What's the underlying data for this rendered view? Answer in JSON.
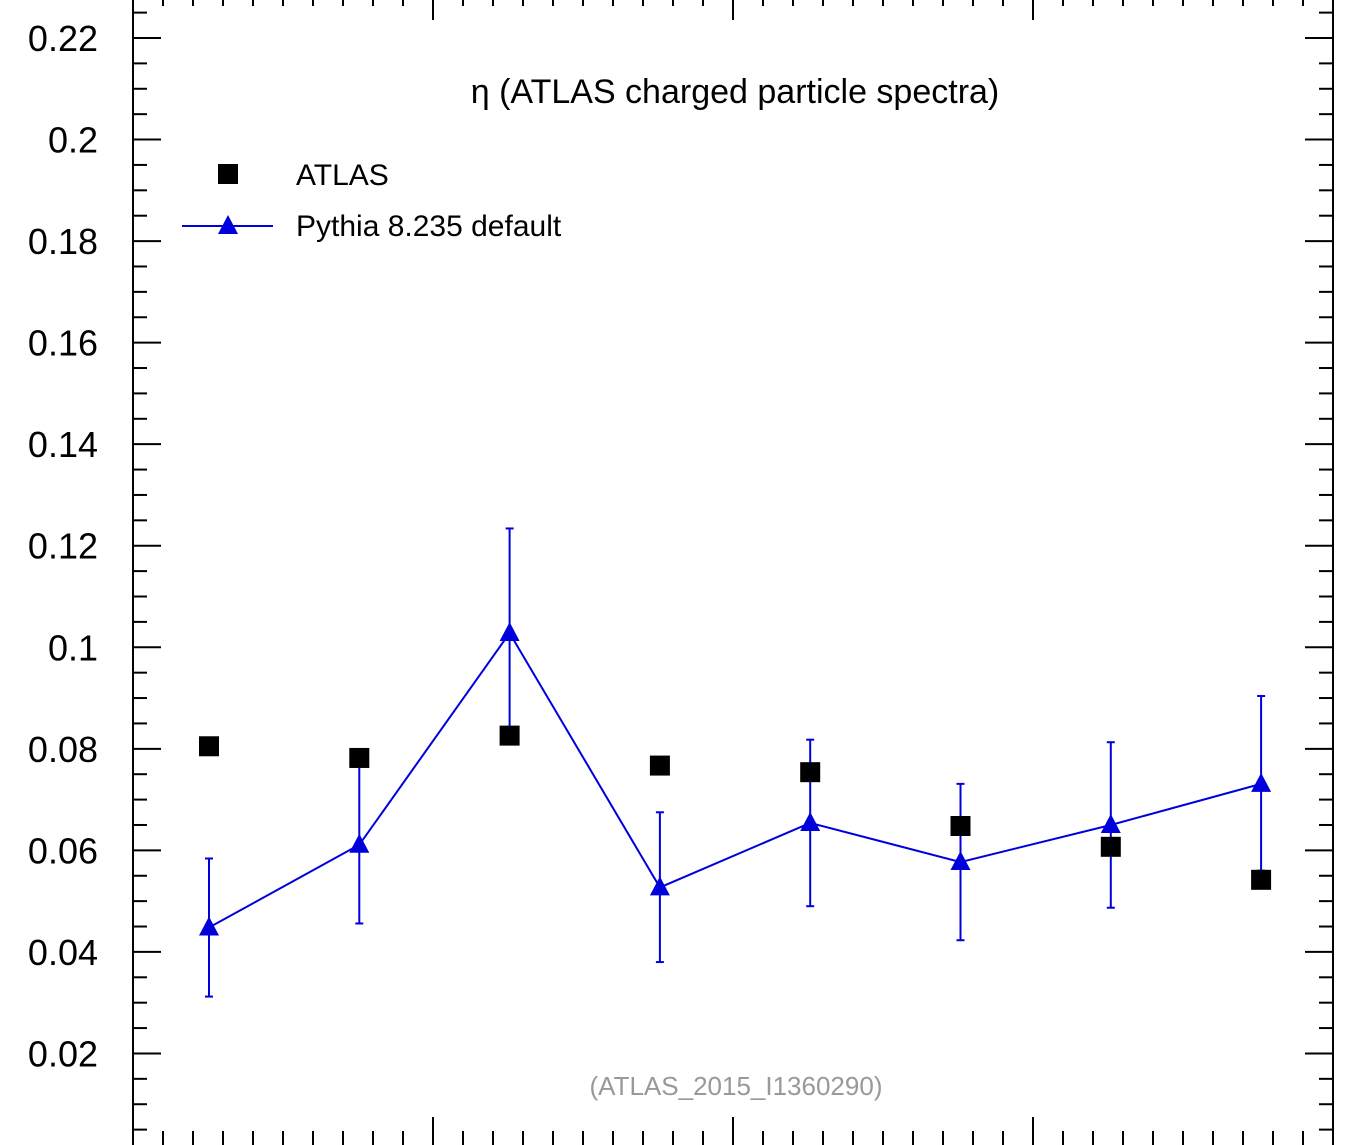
{
  "chart_data": {
    "type": "scatter",
    "title": "η (ATLAS charged particle spectra)",
    "annotation": "(ATLAS_2015_I1360290)",
    "xlabel": "",
    "ylabel": "",
    "ylim": [
      0,
      0.225
    ],
    "yticks": [
      0.02,
      0.04,
      0.06,
      0.08,
      0.1,
      0.12,
      0.14,
      0.16,
      0.18,
      0.2,
      0.22
    ],
    "ytick_labels": [
      "0.02",
      "0.04",
      "0.06",
      "0.08",
      "0.1",
      "0.12",
      "0.14",
      "0.16",
      "0.18",
      "0.2",
      "0.22"
    ],
    "x_positions": [
      1,
      2,
      3,
      4,
      5,
      6,
      7,
      8
    ],
    "legend_position": "top-left",
    "grid": false,
    "series": [
      {
        "name": "ATLAS",
        "marker": "square",
        "color": "#000000",
        "line": false,
        "values": [
          0.0805,
          0.0782,
          0.0826,
          0.0767,
          0.0754,
          0.0648,
          0.0607,
          0.0542
        ]
      },
      {
        "name": "Pythia 8.235 default",
        "marker": "triangle",
        "color": "#0000dd",
        "line": true,
        "values": [
          0.0448,
          0.0611,
          0.1028,
          0.0527,
          0.0654,
          0.0577,
          0.065,
          0.0731
        ],
        "err_low": [
          0.0312,
          0.0456,
          0.0822,
          0.038,
          0.049,
          0.0423,
          0.0487,
          0.056
        ],
        "err_high": [
          0.0584,
          0.0767,
          0.1234,
          0.0675,
          0.0818,
          0.0731,
          0.0813,
          0.0904
        ]
      }
    ]
  }
}
